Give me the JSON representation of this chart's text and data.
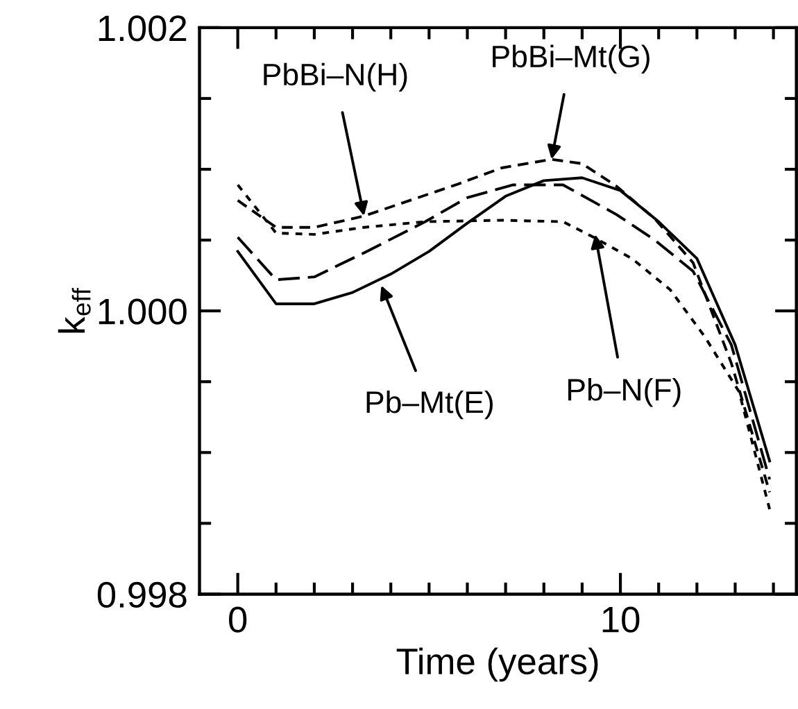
{
  "chart_data": {
    "type": "line",
    "xlabel": "Time (years)",
    "ylabel": "k$_{eff}$",
    "xlim": [
      -1,
      14.6
    ],
    "ylim": [
      0.998,
      1.002
    ],
    "xticks": [
      0,
      {
        "value": 1,
        "label": null
      },
      {
        "value": 2,
        "label": null
      },
      {
        "value": 3,
        "label": null
      },
      {
        "value": 4,
        "label": null
      },
      {
        "value": 5,
        "label": null
      },
      {
        "value": 6,
        "label": null
      },
      {
        "value": 7,
        "label": null
      },
      {
        "value": 8,
        "label": null
      },
      {
        "value": 9,
        "label": null
      },
      10,
      {
        "value": 11,
        "label": null
      },
      {
        "value": 12,
        "label": null
      },
      {
        "value": 13,
        "label": null
      },
      {
        "value": 14,
        "label": null
      }
    ],
    "yticks": [
      {
        "value": 0.998,
        "label": "0.998"
      },
      {
        "value": 0.9985,
        "label": null
      },
      {
        "value": 0.999,
        "label": null
      },
      {
        "value": 0.9995,
        "label": null
      },
      {
        "value": 1.0,
        "label": "1.000"
      },
      {
        "value": 1.0005,
        "label": null
      },
      {
        "value": 1.001,
        "label": null
      },
      {
        "value": 1.0015,
        "label": null
      },
      {
        "value": 1.002,
        "label": "1.002"
      }
    ],
    "grid": false,
    "legend": false,
    "marker": "none",
    "series": [
      {
        "color": "#000000",
        "line_style": "solid",
        "x": [
          0,
          1,
          2,
          3,
          4,
          5,
          6,
          7,
          8,
          9,
          10,
          11,
          12,
          13,
          13.9
        ],
        "values": [
          1.00042,
          1.00005,
          1.00005,
          1.00013,
          1.00026,
          1.00042,
          1.00062,
          1.00081,
          1.00092,
          1.00094,
          1.00085,
          1.00063,
          1.00037,
          0.99976,
          0.99894
        ]
      },
      {
        "color": "#000000",
        "line_style": "dashed",
        "x": [
          0,
          1,
          2,
          3.3,
          4.9,
          6,
          7.2,
          8.5,
          9.9,
          10.9,
          11.9,
          12.9,
          13.9
        ],
        "values": [
          1.00052,
          1.00022,
          1.00024,
          1.00041,
          1.00063,
          1.0008,
          1.00089,
          1.00089,
          1.00068,
          1.0005,
          1.00028,
          0.99976,
          0.99881
        ]
      },
      {
        "color": "#000000",
        "line_style": "dashed",
        "x": [
          0,
          1,
          2,
          3.3,
          4.5,
          5.7,
          6.9,
          8.2,
          9,
          9.9,
          10.9,
          11.9,
          12.9,
          13.9
        ],
        "values": [
          1.00078,
          1.00059,
          1.00059,
          1.00067,
          1.00078,
          1.00089,
          1.00101,
          1.00107,
          1.00104,
          1.00088,
          1.00065,
          1.00034,
          0.99963,
          0.99872
        ]
      },
      {
        "color": "#000000",
        "line_style": "dashed",
        "x": [
          0,
          1,
          2,
          3.3,
          4.9,
          6.9,
          8.5,
          9.3,
          10.3,
          11.3,
          12.2,
          13.1,
          13.9
        ],
        "values": [
          1.00089,
          1.00055,
          1.00054,
          1.00059,
          1.00063,
          1.00064,
          1.00063,
          1.00052,
          1.00037,
          1.00015,
          0.99982,
          0.99943,
          0.9986
        ]
      }
    ],
    "annotations": [
      {
        "text": "PbBi–Mt(G)",
        "x": 8.2,
        "y": 1.00107
      },
      {
        "text": "PbBi–N(H)",
        "x": 3.3,
        "y": 1.00067
      },
      {
        "text": "Pb–Mt(E)",
        "x": 3.75,
        "y": 1.00018
      },
      {
        "text": "Pb–N(F)",
        "x": 9.34,
        "y": 1.00054
      }
    ]
  }
}
